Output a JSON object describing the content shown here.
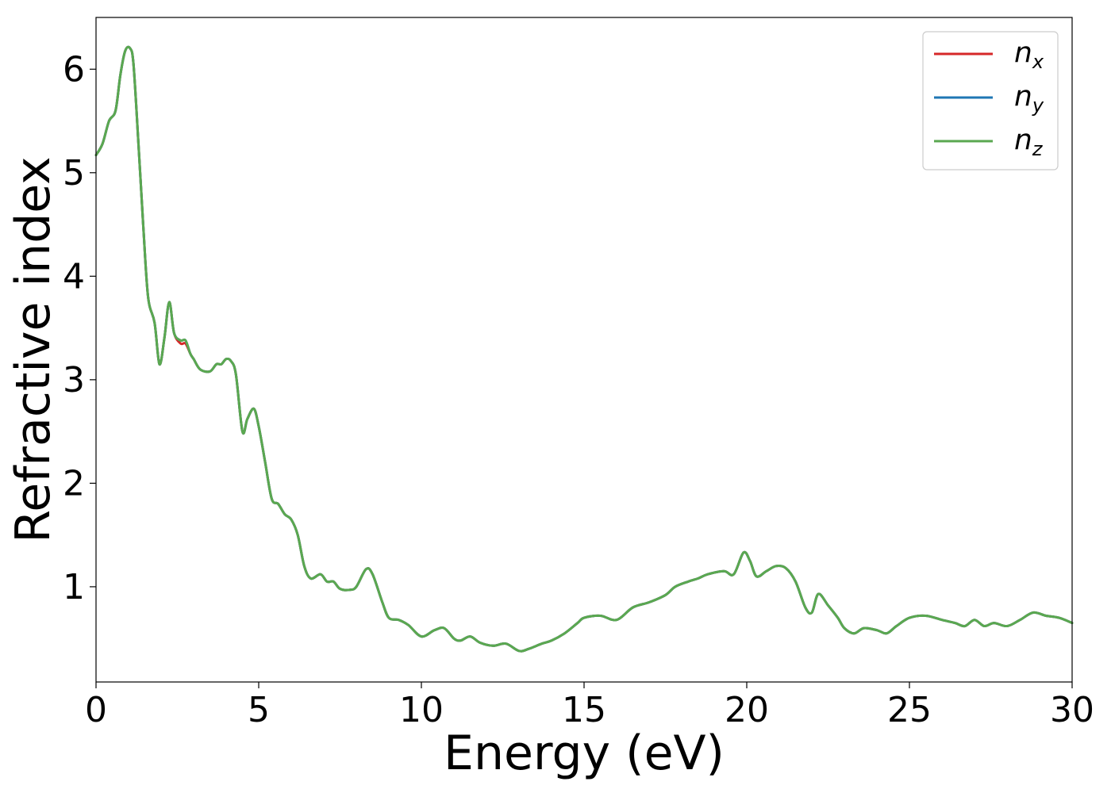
{
  "chart_data": {
    "type": "line",
    "xlabel": "Energy (eV)",
    "ylabel": "Refractive index",
    "xlim": [
      0,
      30
    ],
    "ylim": [
      0.08,
      6.5
    ],
    "xticks": [
      0,
      5,
      10,
      15,
      20,
      25,
      30
    ],
    "yticks": [
      1,
      2,
      3,
      4,
      5,
      6
    ],
    "grid": false,
    "legend_position": "top-right",
    "series": [
      {
        "name": "n",
        "subscript": "x",
        "color": "#d62728",
        "x": [
          0,
          0.2,
          0.4,
          0.6,
          0.75,
          0.9,
          1.05,
          1.15,
          1.3,
          1.45,
          1.6,
          1.8,
          1.95,
          2.1,
          2.25,
          2.4,
          2.6,
          2.75,
          2.9,
          3.0,
          3.2,
          3.5,
          3.7,
          3.85,
          4.0,
          4.15,
          4.3,
          4.5,
          4.65,
          4.85,
          5.0,
          5.2,
          5.4,
          5.6,
          5.8,
          6.0,
          6.2,
          6.4,
          6.6,
          6.9,
          7.1,
          7.3,
          7.5,
          7.8,
          8.0,
          8.3,
          8.5,
          8.8,
          9.0,
          9.3,
          9.6,
          10.0,
          10.4,
          10.7,
          11.0,
          11.2,
          11.5,
          11.8,
          12.2,
          12.6,
          13.0,
          13.3,
          13.7,
          14.0,
          14.4,
          14.8,
          15.0,
          15.5,
          16.0,
          16.5,
          17.0,
          17.5,
          17.8,
          18.2,
          18.5,
          18.8,
          19.3,
          19.6,
          19.9,
          20.1,
          20.3,
          20.6,
          20.9,
          21.2,
          21.5,
          21.8,
          22.0,
          22.2,
          22.5,
          22.8,
          23.0,
          23.3,
          23.6,
          24.0,
          24.3,
          24.6,
          25.0,
          25.5,
          26.0,
          26.4,
          26.7,
          27.0,
          27.3,
          27.6,
          28.0,
          28.4,
          28.8,
          29.2,
          29.6,
          30.0
        ],
        "y": [
          5.17,
          5.28,
          5.5,
          5.6,
          5.95,
          6.18,
          6.2,
          6.05,
          5.3,
          4.5,
          3.8,
          3.55,
          3.15,
          3.4,
          3.75,
          3.45,
          3.35,
          3.35,
          3.25,
          3.2,
          3.1,
          3.08,
          3.15,
          3.15,
          3.2,
          3.18,
          3.05,
          2.5,
          2.62,
          2.72,
          2.55,
          2.2,
          1.85,
          1.8,
          1.7,
          1.65,
          1.5,
          1.2,
          1.08,
          1.12,
          1.05,
          1.05,
          0.98,
          0.97,
          1.0,
          1.17,
          1.12,
          0.85,
          0.7,
          0.68,
          0.63,
          0.52,
          0.58,
          0.6,
          0.5,
          0.48,
          0.52,
          0.46,
          0.43,
          0.45,
          0.38,
          0.4,
          0.45,
          0.48,
          0.55,
          0.65,
          0.7,
          0.72,
          0.68,
          0.8,
          0.85,
          0.92,
          1.0,
          1.05,
          1.08,
          1.12,
          1.15,
          1.12,
          1.33,
          1.25,
          1.1,
          1.15,
          1.2,
          1.18,
          1.05,
          0.8,
          0.75,
          0.93,
          0.82,
          0.7,
          0.6,
          0.55,
          0.6,
          0.58,
          0.55,
          0.62,
          0.7,
          0.72,
          0.68,
          0.65,
          0.62,
          0.68,
          0.62,
          0.65,
          0.62,
          0.68,
          0.75,
          0.72,
          0.7,
          0.65
        ]
      },
      {
        "name": "n",
        "subscript": "y",
        "color": "#1f77b4",
        "x": [
          0,
          0.2,
          0.4,
          0.6,
          0.75,
          0.9,
          1.05,
          1.15,
          1.3,
          1.45,
          1.6,
          1.8,
          1.95,
          2.1,
          2.25,
          2.4,
          2.6,
          2.75,
          2.9,
          3.0,
          3.2,
          3.5,
          3.7,
          3.85,
          4.0,
          4.15,
          4.3,
          4.5,
          4.65,
          4.85,
          5.0,
          5.2,
          5.4,
          5.6,
          5.8,
          6.0,
          6.2,
          6.4,
          6.6,
          6.9,
          7.1,
          7.3,
          7.5,
          7.8,
          8.0,
          8.3,
          8.5,
          8.8,
          9.0,
          9.3,
          9.6,
          10.0,
          10.4,
          10.7,
          11.0,
          11.2,
          11.5,
          11.8,
          12.2,
          12.6,
          13.0,
          13.3,
          13.7,
          14.0,
          14.4,
          14.8,
          15.0,
          15.5,
          16.0,
          16.5,
          17.0,
          17.5,
          17.8,
          18.2,
          18.5,
          18.8,
          19.3,
          19.6,
          19.9,
          20.1,
          20.3,
          20.6,
          20.9,
          21.2,
          21.5,
          21.8,
          22.0,
          22.2,
          22.5,
          22.8,
          23.0,
          23.3,
          23.6,
          24.0,
          24.3,
          24.6,
          25.0,
          25.5,
          26.0,
          26.4,
          26.7,
          27.0,
          27.3,
          27.6,
          28.0,
          28.4,
          28.8,
          29.2,
          29.6,
          30.0
        ],
        "y": [
          5.17,
          5.28,
          5.5,
          5.6,
          5.95,
          6.18,
          6.2,
          6.05,
          5.3,
          4.5,
          3.8,
          3.55,
          3.15,
          3.4,
          3.75,
          3.45,
          3.38,
          3.38,
          3.25,
          3.2,
          3.1,
          3.08,
          3.15,
          3.15,
          3.2,
          3.18,
          3.05,
          2.5,
          2.62,
          2.72,
          2.55,
          2.2,
          1.85,
          1.8,
          1.7,
          1.65,
          1.5,
          1.2,
          1.08,
          1.12,
          1.05,
          1.05,
          0.98,
          0.97,
          1.0,
          1.17,
          1.12,
          0.85,
          0.7,
          0.68,
          0.63,
          0.52,
          0.58,
          0.6,
          0.5,
          0.48,
          0.52,
          0.46,
          0.43,
          0.45,
          0.38,
          0.4,
          0.45,
          0.48,
          0.55,
          0.65,
          0.7,
          0.72,
          0.68,
          0.8,
          0.85,
          0.92,
          1.0,
          1.05,
          1.08,
          1.12,
          1.15,
          1.12,
          1.33,
          1.25,
          1.1,
          1.15,
          1.2,
          1.18,
          1.05,
          0.8,
          0.75,
          0.93,
          0.82,
          0.7,
          0.6,
          0.55,
          0.6,
          0.58,
          0.55,
          0.62,
          0.7,
          0.72,
          0.68,
          0.65,
          0.62,
          0.68,
          0.62,
          0.65,
          0.62,
          0.68,
          0.75,
          0.72,
          0.7,
          0.65
        ]
      },
      {
        "name": "n",
        "subscript": "z",
        "color": "#5aa850",
        "x": [
          0,
          0.2,
          0.4,
          0.6,
          0.75,
          0.9,
          1.05,
          1.15,
          1.3,
          1.45,
          1.6,
          1.8,
          1.95,
          2.1,
          2.25,
          2.4,
          2.6,
          2.75,
          2.9,
          3.0,
          3.2,
          3.5,
          3.7,
          3.85,
          4.0,
          4.15,
          4.3,
          4.5,
          4.65,
          4.85,
          5.0,
          5.2,
          5.4,
          5.6,
          5.8,
          6.0,
          6.2,
          6.4,
          6.6,
          6.9,
          7.1,
          7.3,
          7.5,
          7.8,
          8.0,
          8.3,
          8.5,
          8.8,
          9.0,
          9.3,
          9.6,
          10.0,
          10.4,
          10.7,
          11.0,
          11.2,
          11.5,
          11.8,
          12.2,
          12.6,
          13.0,
          13.3,
          13.7,
          14.0,
          14.4,
          14.8,
          15.0,
          15.5,
          16.0,
          16.5,
          17.0,
          17.5,
          17.8,
          18.2,
          18.5,
          18.8,
          19.3,
          19.6,
          19.9,
          20.1,
          20.3,
          20.6,
          20.9,
          21.2,
          21.5,
          21.8,
          22.0,
          22.2,
          22.5,
          22.8,
          23.0,
          23.3,
          23.6,
          24.0,
          24.3,
          24.6,
          25.0,
          25.5,
          26.0,
          26.4,
          26.7,
          27.0,
          27.3,
          27.6,
          28.0,
          28.4,
          28.8,
          29.2,
          29.6,
          30.0
        ],
        "y": [
          5.17,
          5.28,
          5.5,
          5.6,
          5.95,
          6.18,
          6.2,
          6.05,
          5.3,
          4.5,
          3.8,
          3.55,
          3.15,
          3.4,
          3.75,
          3.45,
          3.38,
          3.38,
          3.25,
          3.2,
          3.1,
          3.08,
          3.15,
          3.15,
          3.2,
          3.18,
          3.05,
          2.5,
          2.62,
          2.72,
          2.55,
          2.2,
          1.85,
          1.8,
          1.7,
          1.65,
          1.5,
          1.2,
          1.08,
          1.12,
          1.05,
          1.05,
          0.98,
          0.97,
          1.0,
          1.17,
          1.12,
          0.85,
          0.7,
          0.68,
          0.63,
          0.52,
          0.58,
          0.6,
          0.5,
          0.48,
          0.52,
          0.46,
          0.43,
          0.45,
          0.38,
          0.4,
          0.45,
          0.48,
          0.55,
          0.65,
          0.7,
          0.72,
          0.68,
          0.8,
          0.85,
          0.92,
          1.0,
          1.05,
          1.08,
          1.12,
          1.15,
          1.12,
          1.33,
          1.25,
          1.1,
          1.15,
          1.2,
          1.18,
          1.05,
          0.8,
          0.75,
          0.93,
          0.82,
          0.7,
          0.6,
          0.55,
          0.6,
          0.58,
          0.55,
          0.62,
          0.7,
          0.72,
          0.68,
          0.65,
          0.62,
          0.68,
          0.62,
          0.65,
          0.62,
          0.68,
          0.75,
          0.72,
          0.7,
          0.65
        ]
      }
    ]
  }
}
